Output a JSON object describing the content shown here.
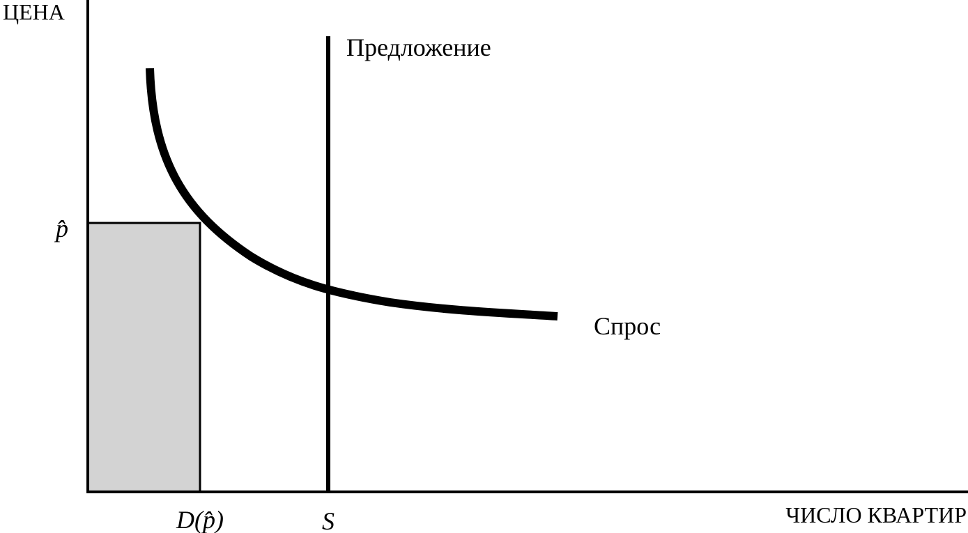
{
  "axes": {
    "y_label": "ЦЕНА",
    "x_label": "ЧИСЛО КВАРТИР"
  },
  "curves": {
    "supply": {
      "label": "Предложение"
    },
    "demand": {
      "label": "Спрос"
    }
  },
  "markers": {
    "price": "p̂",
    "demand_at_price": "D(p̂)",
    "stock": "S"
  }
}
